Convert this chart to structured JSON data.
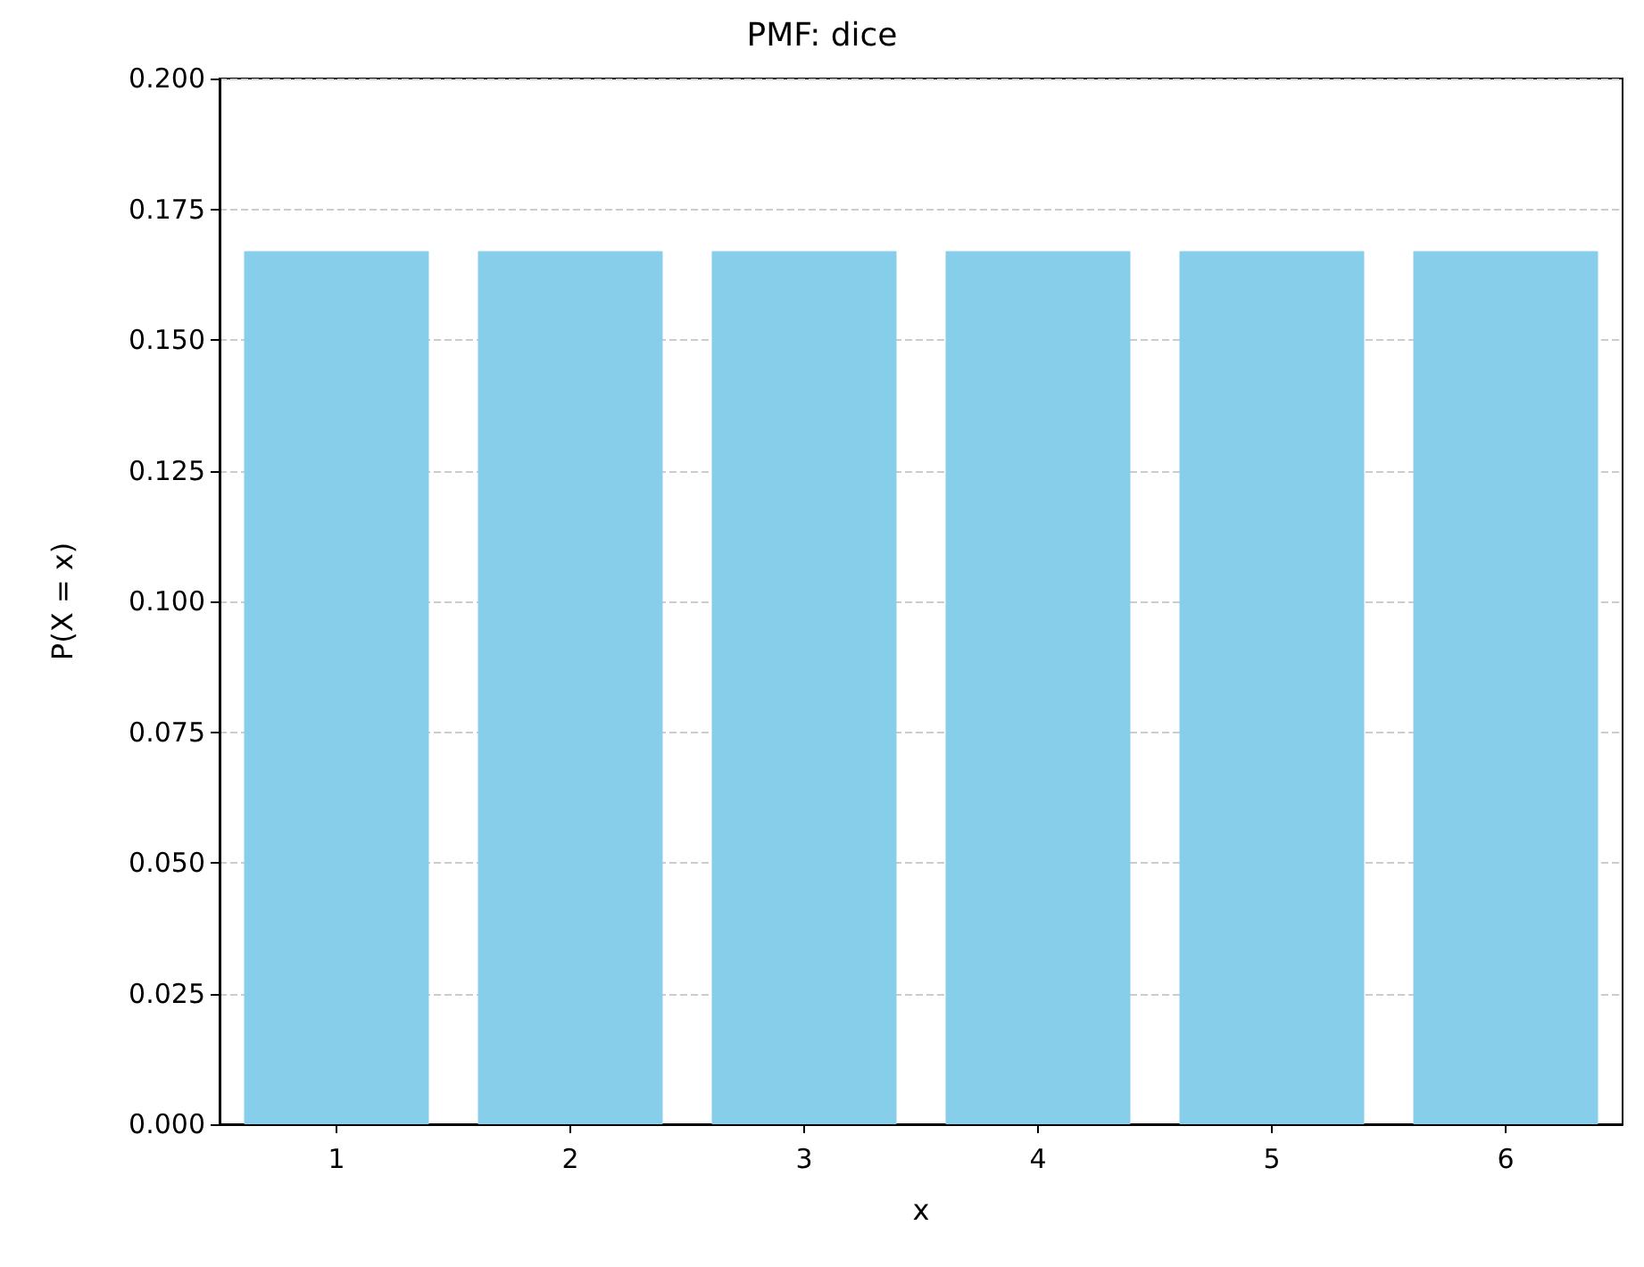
{
  "chart_data": {
    "type": "bar",
    "title": "PMF: dice",
    "xlabel": "x",
    "ylabel": "P(X = x)",
    "categories": [
      "1",
      "2",
      "3",
      "4",
      "5",
      "6"
    ],
    "values": [
      0.167,
      0.167,
      0.167,
      0.167,
      0.167,
      0.167
    ],
    "color": "#87ceeb",
    "ylim": [
      0,
      0.2
    ],
    "yticks": [
      {
        "value": 0,
        "label": "0.000"
      },
      {
        "value": 0.025,
        "label": "0.025"
      },
      {
        "value": 0.05,
        "label": "0.050"
      },
      {
        "value": 0.075,
        "label": "0.075"
      },
      {
        "value": 0.1,
        "label": "0.100"
      },
      {
        "value": 0.125,
        "label": "0.125"
      },
      {
        "value": 0.15,
        "label": "0.150"
      },
      {
        "value": 0.175,
        "label": "0.175"
      },
      {
        "value": 0.2,
        "label": "0.200"
      }
    ],
    "grid": "y"
  }
}
